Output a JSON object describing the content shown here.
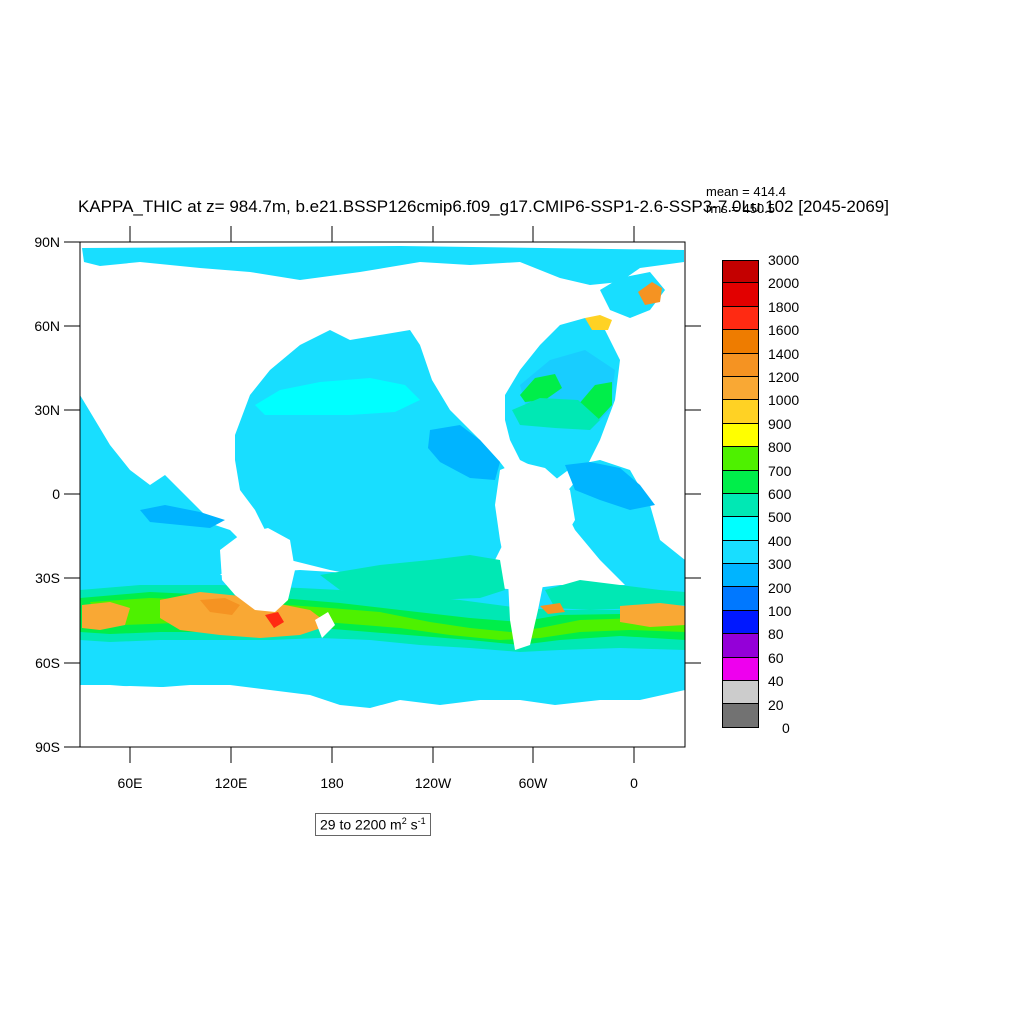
{
  "title": "KAPPA_THIC at z= 984.7m, b.e21.BSSP126cmip6.f09_g17.CMIP6-SSP1-2.6-SSP3-7.0Lu.102 [2045-2069]",
  "stats": {
    "mean": "mean = 414.4",
    "rms": "rms = 450.5"
  },
  "lat_labels": [
    "90N",
    "60N",
    "30N",
    "0",
    "30S",
    "60S",
    "90S"
  ],
  "lon_labels": [
    "60E",
    "120E",
    "180",
    "120W",
    "60W",
    "0"
  ],
  "colorbar": {
    "levels": [
      "3000",
      "2000",
      "1800",
      "1600",
      "1400",
      "1200",
      "1000",
      "900",
      "800",
      "700",
      "600",
      "500",
      "400",
      "300",
      "200",
      "100",
      "80",
      "60",
      "40",
      "20",
      "0"
    ],
    "colors": [
      "#c40000",
      "#e20000",
      "#ff2a12",
      "#ee7c00",
      "#f59322",
      "#f9a834",
      "#ffd224",
      "#ffff00",
      "#4ef100",
      "#00ee4a",
      "#00e8b4",
      "#00ffff",
      "#18deff",
      "#00b4ff",
      "#0078ff",
      "#0018ff",
      "#9400d8",
      "#ee00ee",
      "#cccccc",
      "#727272"
    ]
  },
  "range_label": {
    "text": "29 to 2200 m",
    "unit_sup_1": "2",
    "unit_mid": " s",
    "unit_sup_2": "-1"
  }
}
